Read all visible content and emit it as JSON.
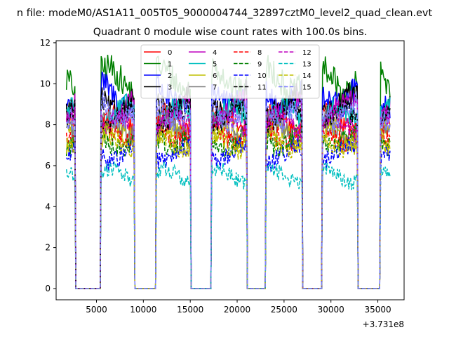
{
  "figure": {
    "suptitle": "n file: modeM0/AS1A11_005T05_9000004744_32897cztM0_level2_quad_clean.evt"
  },
  "chart_data": {
    "type": "line",
    "title": "Quadrant 0 module wise count rates with 100.0s bins.",
    "xlabel": "",
    "ylabel": "",
    "x_offset_label": "+3.731e8",
    "xlim": [
      700,
      37800
    ],
    "ylim": [
      -0.55,
      12.1
    ],
    "x_ticks": [
      5000,
      10000,
      15000,
      20000,
      25000,
      30000,
      35000
    ],
    "x_tick_labels": [
      "5000",
      "10000",
      "15000",
      "20000",
      "25000",
      "30000",
      "35000"
    ],
    "y_ticks": [
      0,
      2,
      4,
      6,
      8,
      10,
      12
    ],
    "y_tick_labels": [
      "0",
      "2",
      "4",
      "6",
      "8",
      "10",
      "12"
    ],
    "grid": false,
    "legend": {
      "placement": "top-center",
      "columns": 4
    },
    "time_bin_s": 100,
    "segments": [
      [
        1800,
        2700
      ],
      [
        5500,
        9000
      ],
      [
        11400,
        15000
      ],
      [
        17300,
        21000
      ],
      [
        23100,
        26900
      ],
      [
        29100,
        32800
      ],
      [
        35300,
        36300
      ]
    ],
    "series": [
      {
        "name": "0",
        "color": "#ff0000",
        "dash": "solid",
        "level": 8.1
      },
      {
        "name": "1",
        "color": "#008000",
        "dash": "solid",
        "level": 10.2
      },
      {
        "name": "2",
        "color": "#0000ff",
        "dash": "solid",
        "level": 9.5
      },
      {
        "name": "3",
        "color": "#000000",
        "dash": "solid",
        "level": 9.1
      },
      {
        "name": "4",
        "color": "#bf00bf",
        "dash": "solid",
        "level": 8.6
      },
      {
        "name": "5",
        "color": "#00bfbf",
        "dash": "solid",
        "level": 8.4
      },
      {
        "name": "6",
        "color": "#bfbf00",
        "dash": "solid",
        "level": 7.4
      },
      {
        "name": "7",
        "color": "#808080",
        "dash": "solid",
        "level": 7.8
      },
      {
        "name": "8",
        "color": "#ff0000",
        "dash": "dashed",
        "level": 7.6
      },
      {
        "name": "9",
        "color": "#008000",
        "dash": "dashed",
        "level": 7.3
      },
      {
        "name": "10",
        "color": "#0000ff",
        "dash": "dashed",
        "level": 6.6
      },
      {
        "name": "11",
        "color": "#000000",
        "dash": "dashed",
        "level": 8.3
      },
      {
        "name": "12",
        "color": "#bf00bf",
        "dash": "dashed",
        "level": 8.0
      },
      {
        "name": "13",
        "color": "#00bfbf",
        "dash": "dashed",
        "level": 5.5
      },
      {
        "name": "14",
        "color": "#bfbf00",
        "dash": "dashed",
        "level": 7.2
      },
      {
        "name": "15",
        "color": "#8080ff",
        "dash": "dashed",
        "level": 8.7
      }
    ]
  }
}
